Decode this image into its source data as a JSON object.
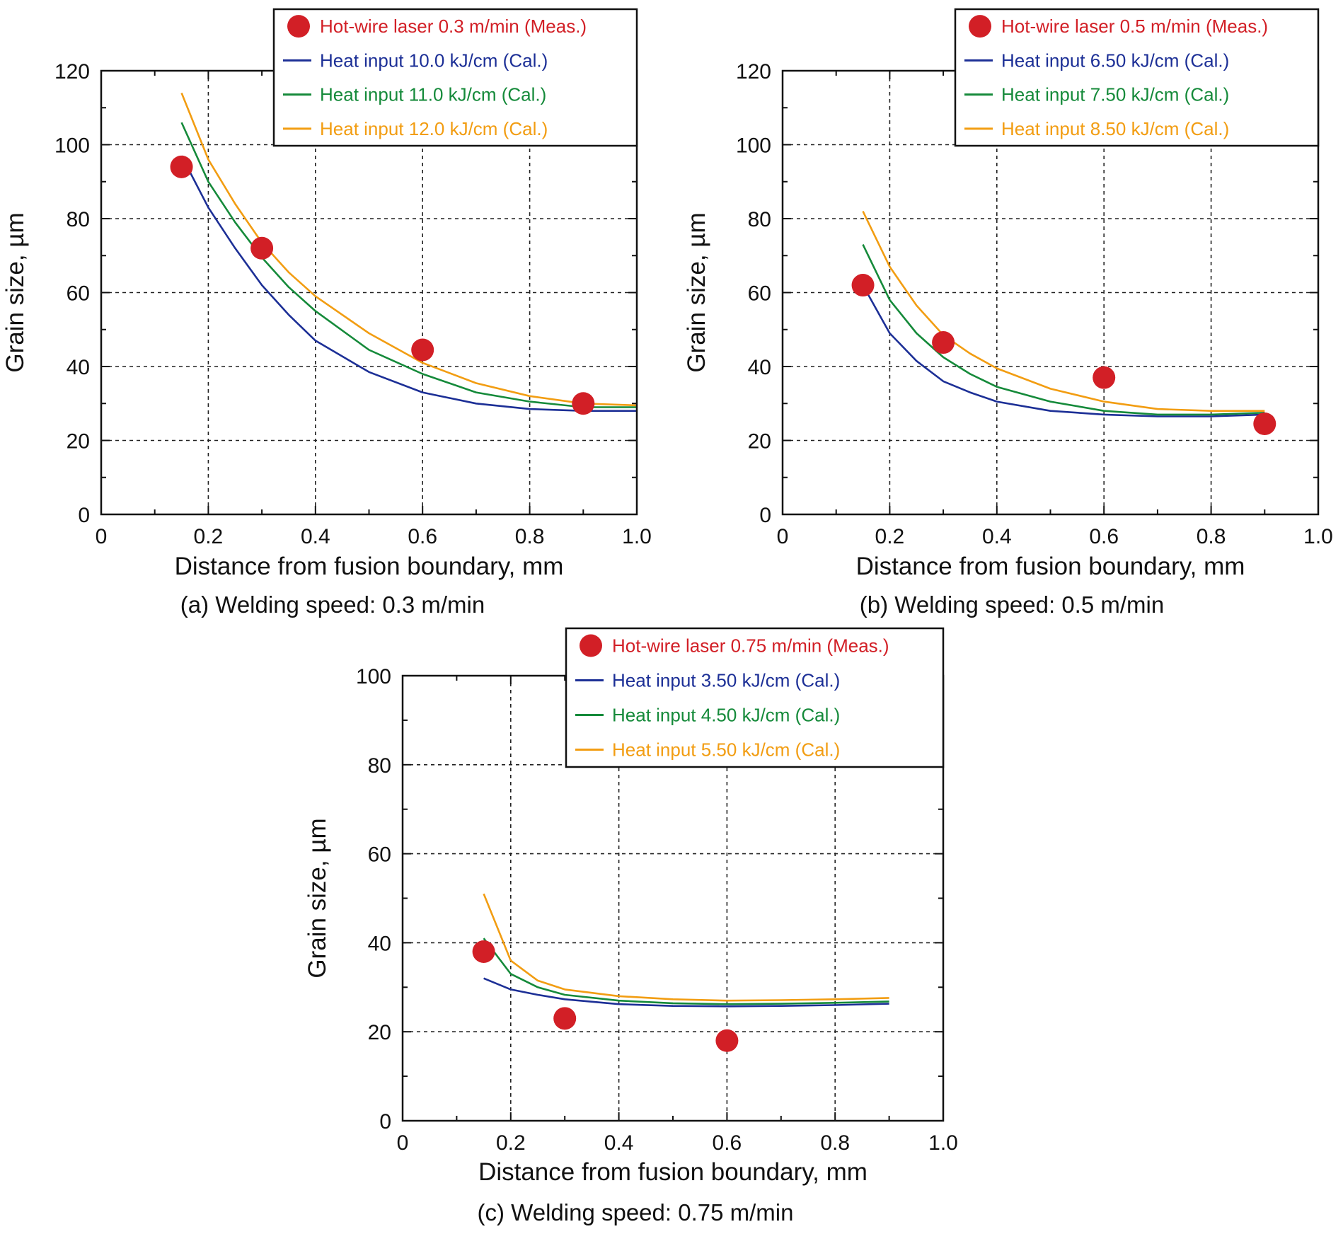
{
  "figure": {
    "colors": {
      "meas": "#d21f26",
      "low": "#1c2f96",
      "mid": "#158a3a",
      "high": "#f29d12"
    }
  },
  "chart_data": [
    {
      "type": "line",
      "panel": "a",
      "caption": "(a) Welding speed: 0.3 m/min",
      "xlabel": "Distance from fusion boundary, mm",
      "ylabel": "Grain size, µm",
      "xlim": [
        0,
        1.0
      ],
      "ylim": [
        0,
        120
      ],
      "xticks": [
        "0",
        "0.2",
        "0.4",
        "0.6",
        "0.8",
        "1.0"
      ],
      "xtick_values": [
        0,
        0.2,
        0.4,
        0.6,
        0.8,
        1.0
      ],
      "yticks": [
        "0",
        "20",
        "40",
        "60",
        "80",
        "100",
        "120"
      ],
      "ytick_values": [
        0,
        20,
        40,
        60,
        80,
        100,
        120
      ],
      "grid": true,
      "legend_position": "top-right",
      "measured": {
        "name": "Hot-wire laser 0.3 m/min (Meas.)",
        "x": [
          0.15,
          0.3,
          0.6,
          0.9
        ],
        "y": [
          94,
          72,
          44.5,
          30
        ]
      },
      "series": [
        {
          "name": "Heat input 10.0 kJ/cm (Cal.)",
          "color_key": "low",
          "x": [
            0.15,
            0.2,
            0.25,
            0.3,
            0.35,
            0.4,
            0.5,
            0.6,
            0.7,
            0.8,
            0.9,
            1.0
          ],
          "y": [
            97,
            83,
            72,
            62,
            54,
            47,
            38.5,
            33,
            30,
            28.5,
            28,
            28
          ]
        },
        {
          "name": "Heat input 11.0 kJ/cm (Cal.)",
          "color_key": "mid",
          "x": [
            0.15,
            0.2,
            0.25,
            0.3,
            0.35,
            0.4,
            0.5,
            0.6,
            0.7,
            0.8,
            0.9,
            1.0
          ],
          "y": [
            106,
            90,
            79,
            69.5,
            61.5,
            55,
            44.5,
            38,
            33,
            30.5,
            29,
            29
          ]
        },
        {
          "name": "Heat input 12.0 kJ/cm (Cal.)",
          "color_key": "high",
          "x": [
            0.15,
            0.2,
            0.25,
            0.3,
            0.35,
            0.4,
            0.5,
            0.6,
            0.7,
            0.8,
            0.9,
            1.0
          ],
          "y": [
            114,
            96,
            84,
            73.5,
            65.5,
            59,
            49,
            41,
            35.5,
            32,
            30,
            29.5
          ]
        }
      ]
    },
    {
      "type": "line",
      "panel": "b",
      "caption": "(b) Welding speed: 0.5 m/min",
      "xlabel": "Distance from fusion boundary, mm",
      "ylabel": "Grain size, µm",
      "xlim": [
        0,
        1.0
      ],
      "ylim": [
        0,
        120
      ],
      "xticks": [
        "0",
        "0.2",
        "0.4",
        "0.6",
        "0.8",
        "1.0"
      ],
      "xtick_values": [
        0,
        0.2,
        0.4,
        0.6,
        0.8,
        1.0
      ],
      "yticks": [
        "0",
        "20",
        "40",
        "60",
        "80",
        "100",
        "120"
      ],
      "ytick_values": [
        0,
        20,
        40,
        60,
        80,
        100,
        120
      ],
      "grid": true,
      "legend_position": "top-right",
      "measured": {
        "name": "Hot-wire laser 0.5 m/min (Meas.)",
        "x": [
          0.15,
          0.3,
          0.6,
          0.9
        ],
        "y": [
          62,
          46.5,
          37,
          24.5
        ]
      },
      "series": [
        {
          "name": "Heat input 6.50 kJ/cm (Cal.)",
          "color_key": "low",
          "x": [
            0.15,
            0.2,
            0.25,
            0.3,
            0.35,
            0.4,
            0.5,
            0.6,
            0.7,
            0.8,
            0.9
          ],
          "y": [
            62,
            49,
            41.5,
            36,
            33,
            30.5,
            28,
            27,
            26.5,
            26.5,
            27
          ]
        },
        {
          "name": "Heat input 7.50 kJ/cm (Cal.)",
          "color_key": "mid",
          "x": [
            0.15,
            0.2,
            0.25,
            0.3,
            0.35,
            0.4,
            0.5,
            0.6,
            0.7,
            0.8,
            0.9
          ],
          "y": [
            73,
            58,
            49,
            42.5,
            38,
            34.5,
            30.5,
            28,
            27,
            27,
            27.5
          ]
        },
        {
          "name": "Heat input 8.50 kJ/cm (Cal.)",
          "color_key": "high",
          "x": [
            0.15,
            0.2,
            0.25,
            0.3,
            0.35,
            0.4,
            0.5,
            0.6,
            0.7,
            0.8,
            0.9
          ],
          "y": [
            82,
            67,
            56.5,
            48.5,
            43.5,
            39.5,
            34,
            30.5,
            28.5,
            28,
            28
          ]
        }
      ]
    },
    {
      "type": "line",
      "panel": "c",
      "caption": "(c) Welding speed: 0.75 m/min",
      "xlabel": "Distance from fusion boundary, mm",
      "ylabel": "Grain size, µm",
      "xlim": [
        0,
        1.0
      ],
      "ylim": [
        0,
        100
      ],
      "xticks": [
        "0",
        "0.2",
        "0.4",
        "0.6",
        "0.8",
        "1.0"
      ],
      "xtick_values": [
        0,
        0.2,
        0.4,
        0.6,
        0.8,
        1.0
      ],
      "yticks": [
        "0",
        "20",
        "40",
        "60",
        "80",
        "100"
      ],
      "ytick_values": [
        0,
        20,
        40,
        60,
        80,
        100
      ],
      "grid": true,
      "legend_position": "top-right",
      "measured": {
        "name": "Hot-wire laser 0.75 m/min (Meas.)",
        "x": [
          0.15,
          0.3,
          0.6
        ],
        "y": [
          38,
          23,
          18
        ]
      },
      "series": [
        {
          "name": "Heat input 3.50 kJ/cm (Cal.)",
          "color_key": "low",
          "x": [
            0.15,
            0.2,
            0.25,
            0.3,
            0.4,
            0.5,
            0.6,
            0.7,
            0.8,
            0.9
          ],
          "y": [
            32,
            29.5,
            28.3,
            27.3,
            26.2,
            25.8,
            25.7,
            25.8,
            26,
            26.3
          ]
        },
        {
          "name": "Heat input 4.50 kJ/cm (Cal.)",
          "color_key": "mid",
          "x": [
            0.15,
            0.2,
            0.25,
            0.3,
            0.4,
            0.5,
            0.6,
            0.7,
            0.8,
            0.9
          ],
          "y": [
            41,
            33,
            30,
            28.3,
            27,
            26.4,
            26.2,
            26.3,
            26.5,
            26.8
          ]
        },
        {
          "name": "Heat input 5.50 kJ/cm (Cal.)",
          "color_key": "high",
          "x": [
            0.15,
            0.2,
            0.25,
            0.3,
            0.4,
            0.5,
            0.6,
            0.7,
            0.8,
            0.9
          ],
          "y": [
            51,
            36,
            31.5,
            29.5,
            28,
            27.3,
            27,
            27.1,
            27.3,
            27.6
          ]
        }
      ]
    }
  ]
}
